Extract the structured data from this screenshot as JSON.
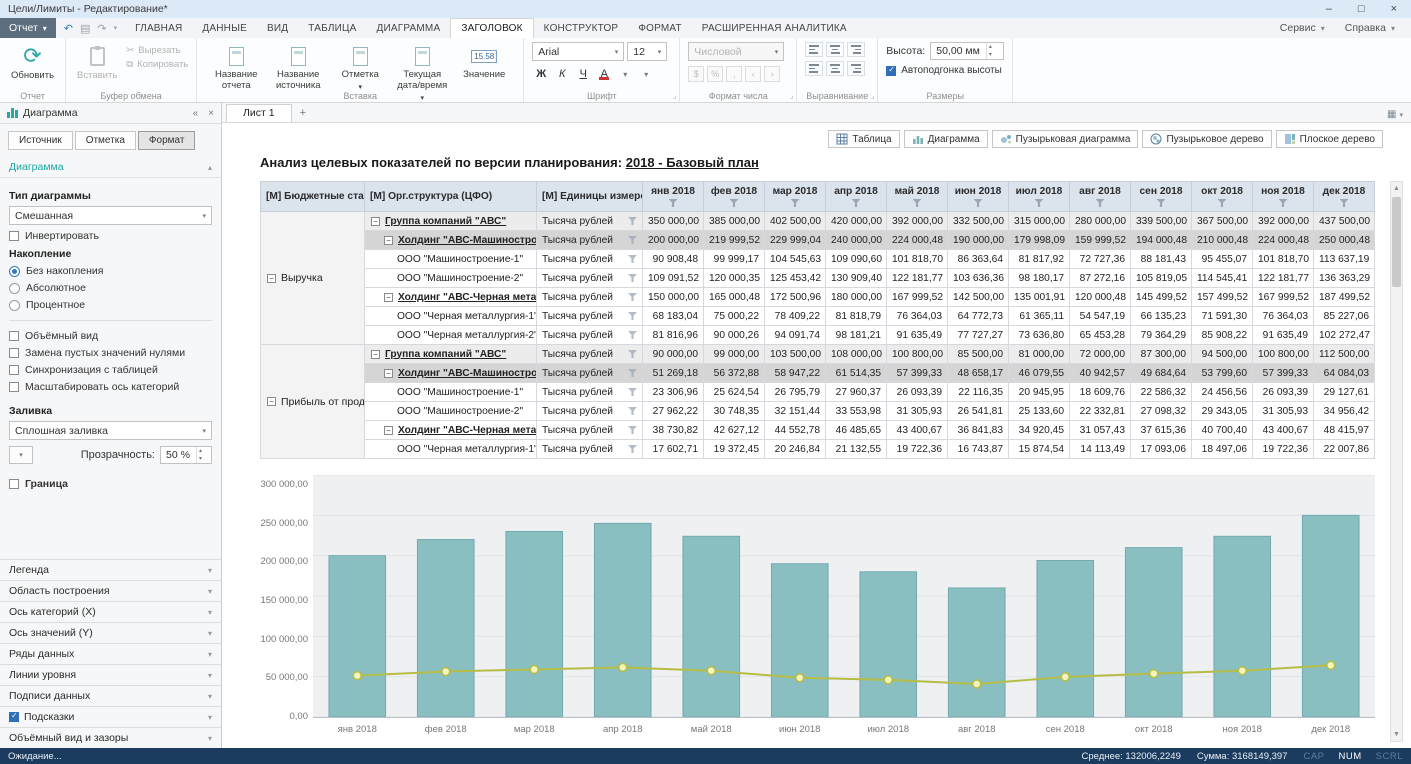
{
  "window": {
    "title": "Цели/Лимиты - Редактирование*"
  },
  "icons": {
    "dropdown": "▾",
    "spin_up": "▴",
    "spin_down": "▾",
    "chevron_up": "▴",
    "chevron_down": "▾",
    "scroll_up": "▲",
    "scroll_down": "▼",
    "minimize": "–",
    "maximize": "□",
    "close": "×",
    "collapse_panel": "«",
    "undo": "↶",
    "redo": "↷",
    "save": "▤",
    "cut": "✂",
    "copy": "⧉",
    "add_sheet": "+",
    "nav_left": "‹",
    "nav_right": "›",
    "corner": "⌟",
    "grid": "▦",
    "minus": "−"
  },
  "ribbon": {
    "report_button": "Отчет",
    "tabs": [
      "ГЛАВНАЯ",
      "ДАННЫЕ",
      "ВИД",
      "ТАБЛИЦА",
      "ДИАГРАММА",
      "ЗАГОЛОВОК",
      "КОНСТРУКТОР",
      "ФОРМАТ",
      "РАСШИРЕННАЯ АНАЛИТИКА"
    ],
    "active_tab": "ЗАГОЛОВОК",
    "menus_right": [
      "Сервис",
      "Справка"
    ],
    "groups": {
      "report": {
        "label": "Отчет",
        "refresh": "Обновить"
      },
      "clipboard": {
        "label": "Буфер обмена",
        "paste": "Вставить",
        "cut": "Вырезать",
        "copy": "Копировать"
      },
      "insert": {
        "label": "Вставка",
        "items": [
          {
            "label": "Название отчета",
            "dropdown": false,
            "badge": null
          },
          {
            "label": "Название источника",
            "dropdown": false,
            "badge": null
          },
          {
            "label": "Отметка",
            "dropdown": true,
            "badge": null
          },
          {
            "label": "Текущая дата/время",
            "dropdown": true,
            "badge": null
          },
          {
            "label": "Значение",
            "dropdown": false,
            "badge": "15.58"
          }
        ]
      },
      "font": {
        "label": "Шрифт",
        "family": "Arial",
        "size": "12",
        "bold": "Ж",
        "italic": "К",
        "underline": "Ч",
        "color_letter": "А"
      },
      "number": {
        "label": "Формат числа",
        "format": "Числовой",
        "buttons": [
          "$",
          "%",
          ","
        ]
      },
      "align": {
        "label": "Выравнивание"
      },
      "size": {
        "label": "Размеры",
        "height_label": "Высота:",
        "height_value": "50,00 мм",
        "autofit_label": "Автоподгонка высоты",
        "autofit_checked": true
      }
    }
  },
  "panel": {
    "header": "Диаграмма",
    "tabs": [
      "Источник",
      "Отметка",
      "Формат"
    ],
    "active_tab_index": 2,
    "format": {
      "section": "Диаграмма",
      "type_label": "Тип диаграммы",
      "type_value": "Смешанная",
      "invert": "Инвертировать",
      "stack_label": "Накопление",
      "stack_options": [
        "Без накопления",
        "Абсолютное",
        "Процентное"
      ],
      "stack_selected": 0,
      "options": [
        "Объёмный вид",
        "Замена пустых значений нулями",
        "Синхронизация с таблицей",
        "Масштабировать ось категорий"
      ],
      "fill_label": "Заливка",
      "fill_value": "Сплошная заливка",
      "opacity_label": "Прозрачность:",
      "opacity_value": "50 %",
      "border": "Граница"
    },
    "sections": [
      {
        "label": "Легенда",
        "checked": null
      },
      {
        "label": "Область построения",
        "checked": null
      },
      {
        "label": "Ось категорий (X)",
        "checked": null
      },
      {
        "label": "Ось значений (Y)",
        "checked": null
      },
      {
        "label": "Ряды данных",
        "checked": null
      },
      {
        "label": "Линии уровня",
        "checked": null
      },
      {
        "label": "Подписи данных",
        "checked": null
      },
      {
        "label": "Подсказки",
        "checked": true
      },
      {
        "label": "Объёмный вид и зазоры",
        "checked": null
      }
    ]
  },
  "sheet": {
    "tab": "Лист 1"
  },
  "view_buttons": [
    {
      "label": "Таблица",
      "icon": "table",
      "active": false
    },
    {
      "label": "Диаграмма",
      "icon": "chart",
      "active": false
    },
    {
      "label": "Пузырьковая диаграмма",
      "icon": "bubble",
      "active": false
    },
    {
      "label": "Пузырьковое дерево",
      "icon": "bubbletree",
      "active": false
    },
    {
      "label": "Плоское дерево",
      "icon": "flattree",
      "active": false
    }
  ],
  "report": {
    "title_prefix": "Анализ целевых показателей по версии планирования:",
    "title_link": "2018 - Базовый план"
  },
  "table": {
    "corner_headers": [
      "[М] Бюджетные статьи",
      "[М] Орг.структура (ЦФО)",
      "[М] Единицы измерения"
    ],
    "months": [
      "янв 2018",
      "фев 2018",
      "мар 2018",
      "апр 2018",
      "май 2018",
      "июн 2018",
      "июл 2018",
      "авг 2018",
      "сен 2018",
      "окт 2018",
      "ноя 2018",
      "дек 2018"
    ],
    "groups": [
      {
        "label": "Выручка",
        "rows": [
          {
            "org": "Группа компаний \"АВС\"",
            "unit": "Тысяча рублей",
            "level": 0,
            "bold": true,
            "style": "group",
            "values": [
              "350 000,00",
              "385 000,00",
              "402 500,00",
              "420 000,00",
              "392 000,00",
              "332 500,00",
              "315 000,00",
              "280 000,00",
              "339 500,00",
              "367 500,00",
              "392 000,00",
              "437 500,00"
            ]
          },
          {
            "org": "Холдинг \"АВС-Машиностроение\"",
            "unit": "Тысяча рублей",
            "level": 1,
            "bold": true,
            "style": "selected",
            "values": [
              "200 000,00",
              "219 999,52",
              "229 999,04",
              "240 000,00",
              "224 000,48",
              "190 000,00",
              "179 998,09",
              "159 999,52",
              "194 000,48",
              "210 000,48",
              "224 000,48",
              "250 000,48"
            ]
          },
          {
            "org": "ООО \"Машиностроение-1\"",
            "unit": "Тысяча рублей",
            "level": 2,
            "bold": false,
            "style": "normal",
            "values": [
              "90 908,48",
              "99 999,17",
              "104 545,63",
              "109 090,60",
              "101 818,70",
              "86 363,64",
              "81 817,92",
              "72 727,36",
              "88 181,43",
              "95 455,07",
              "101 818,70",
              "113 637,19"
            ]
          },
          {
            "org": "ООО \"Машиностроение-2\"",
            "unit": "Тысяча рублей",
            "level": 2,
            "bold": false,
            "style": "normal",
            "values": [
              "109 091,52",
              "120 000,35",
              "125 453,42",
              "130 909,40",
              "122 181,77",
              "103 636,36",
              "98 180,17",
              "87 272,16",
              "105 819,05",
              "114 545,41",
              "122 181,77",
              "136 363,29"
            ]
          },
          {
            "org": "Холдинг \"АВС-Черная металлургия\"",
            "unit": "Тысяча рублей",
            "level": 1,
            "bold": true,
            "style": "normal",
            "values": [
              "150 000,00",
              "165 000,48",
              "172 500,96",
              "180 000,00",
              "167 999,52",
              "142 500,00",
              "135 001,91",
              "120 000,48",
              "145 499,52",
              "157 499,52",
              "167 999,52",
              "187 499,52"
            ]
          },
          {
            "org": "ООО \"Черная металлургия-1\"",
            "unit": "Тысяча рублей",
            "level": 2,
            "bold": false,
            "style": "normal",
            "values": [
              "68 183,04",
              "75 000,22",
              "78 409,22",
              "81 818,79",
              "76 364,03",
              "64 772,73",
              "61 365,11",
              "54 547,19",
              "66 135,23",
              "71 591,30",
              "76 364,03",
              "85 227,06"
            ]
          },
          {
            "org": "ООО \"Черная металлургия-2\"",
            "unit": "Тысяча рублей",
            "level": 2,
            "bold": false,
            "style": "normal",
            "values": [
              "81 816,96",
              "90 000,26",
              "94 091,74",
              "98 181,21",
              "91 635,49",
              "77 727,27",
              "73 636,80",
              "65 453,28",
              "79 364,29",
              "85 908,22",
              "91 635,49",
              "102 272,47"
            ]
          }
        ]
      },
      {
        "label": "Прибыль от продаж",
        "rows": [
          {
            "org": "Группа компаний \"АВС\"",
            "unit": "Тысяча рублей",
            "level": 0,
            "bold": true,
            "style": "group",
            "values": [
              "90 000,00",
              "99 000,00",
              "103 500,00",
              "108 000,00",
              "100 800,00",
              "85 500,00",
              "81 000,00",
              "72 000,00",
              "87 300,00",
              "94 500,00",
              "100 800,00",
              "112 500,00"
            ]
          },
          {
            "org": "Холдинг \"АВС-Машиностроение\"",
            "unit": "Тысяча рублей",
            "level": 1,
            "bold": true,
            "style": "selected",
            "values": [
              "51 269,18",
              "56 372,88",
              "58 947,22",
              "61 514,35",
              "57 399,33",
              "48 658,17",
              "46 079,55",
              "40 942,57",
              "49 684,64",
              "53 799,60",
              "57 399,33",
              "64 084,03"
            ]
          },
          {
            "org": "ООО \"Машиностроение-1\"",
            "unit": "Тысяча рублей",
            "level": 2,
            "bold": false,
            "style": "normal",
            "values": [
              "23 306,96",
              "25 624,54",
              "26 795,79",
              "27 960,37",
              "26 093,39",
              "22 116,35",
              "20 945,95",
              "18 609,76",
              "22 586,32",
              "24 456,56",
              "26 093,39",
              "29 127,61"
            ]
          },
          {
            "org": "ООО \"Машиностроение-2\"",
            "unit": "Тысяча рублей",
            "level": 2,
            "bold": false,
            "style": "normal",
            "values": [
              "27 962,22",
              "30 748,35",
              "32 151,44",
              "33 553,98",
              "31 305,93",
              "26 541,81",
              "25 133,60",
              "22 332,81",
              "27 098,32",
              "29 343,05",
              "31 305,93",
              "34 956,42"
            ]
          },
          {
            "org": "Холдинг \"АВС-Черная металлургия\"",
            "unit": "Тысяча рублей",
            "level": 1,
            "bold": true,
            "style": "normal",
            "values": [
              "38 730,82",
              "42 627,12",
              "44 552,78",
              "46 485,65",
              "43 400,67",
              "36 841,83",
              "34 920,45",
              "31 057,43",
              "37 615,36",
              "40 700,40",
              "43 400,67",
              "48 415,97"
            ]
          },
          {
            "org": "ООО \"Черная металлургия-1\"",
            "unit": "Тысяча рублей",
            "level": 2,
            "bold": false,
            "style": "normal",
            "values": [
              "17 602,71",
              "19 372,45",
              "20 246,84",
              "21 132,55",
              "19 722,36",
              "16 743,87",
              "15 874,54",
              "14 113,49",
              "17 093,06",
              "18 497,06",
              "19 722,36",
              "22 007,86"
            ]
          }
        ]
      }
    ]
  },
  "chart_data": {
    "type": "mixed",
    "title": "",
    "categories": [
      "янв 2018",
      "фев 2018",
      "мар 2018",
      "апр 2018",
      "май 2018",
      "июн 2018",
      "июл 2018",
      "авг 2018",
      "сен 2018",
      "окт 2018",
      "ноя 2018",
      "дек 2018"
    ],
    "series": [
      {
        "name": "Холдинг \"АВС-Машиностроение\" — Выручка",
        "type": "bar",
        "color": "#8abfc2",
        "values": [
          200000.0,
          219999.52,
          229999.04,
          240000.0,
          224000.48,
          190000.0,
          179998.09,
          159999.52,
          194000.48,
          210000.48,
          224000.48,
          250000.48
        ]
      },
      {
        "name": "Холдинг \"АВС-Машиностроение\" — Прибыль от продаж",
        "type": "line",
        "color": "#b6bd44",
        "values": [
          51269.18,
          56372.88,
          58947.22,
          61514.35,
          57399.33,
          48658.17,
          46079.55,
          40942.57,
          49684.64,
          53799.6,
          57399.33,
          64084.03
        ]
      }
    ],
    "ylim": [
      0,
      300000
    ],
    "yticks": [
      "300 000,00",
      "250 000,00",
      "200 000,00",
      "150 000,00",
      "100 000,00",
      "50 000,00",
      "0,00"
    ],
    "grid": true,
    "legend": "none"
  },
  "statusbar": {
    "left": "Ожидание...",
    "avg": "Среднее: 132006,2249",
    "sum": "Сумма: 3168149,397",
    "indicators": [
      "CAP",
      "NUM",
      "SCRL"
    ],
    "active_indicator": "NUM"
  }
}
